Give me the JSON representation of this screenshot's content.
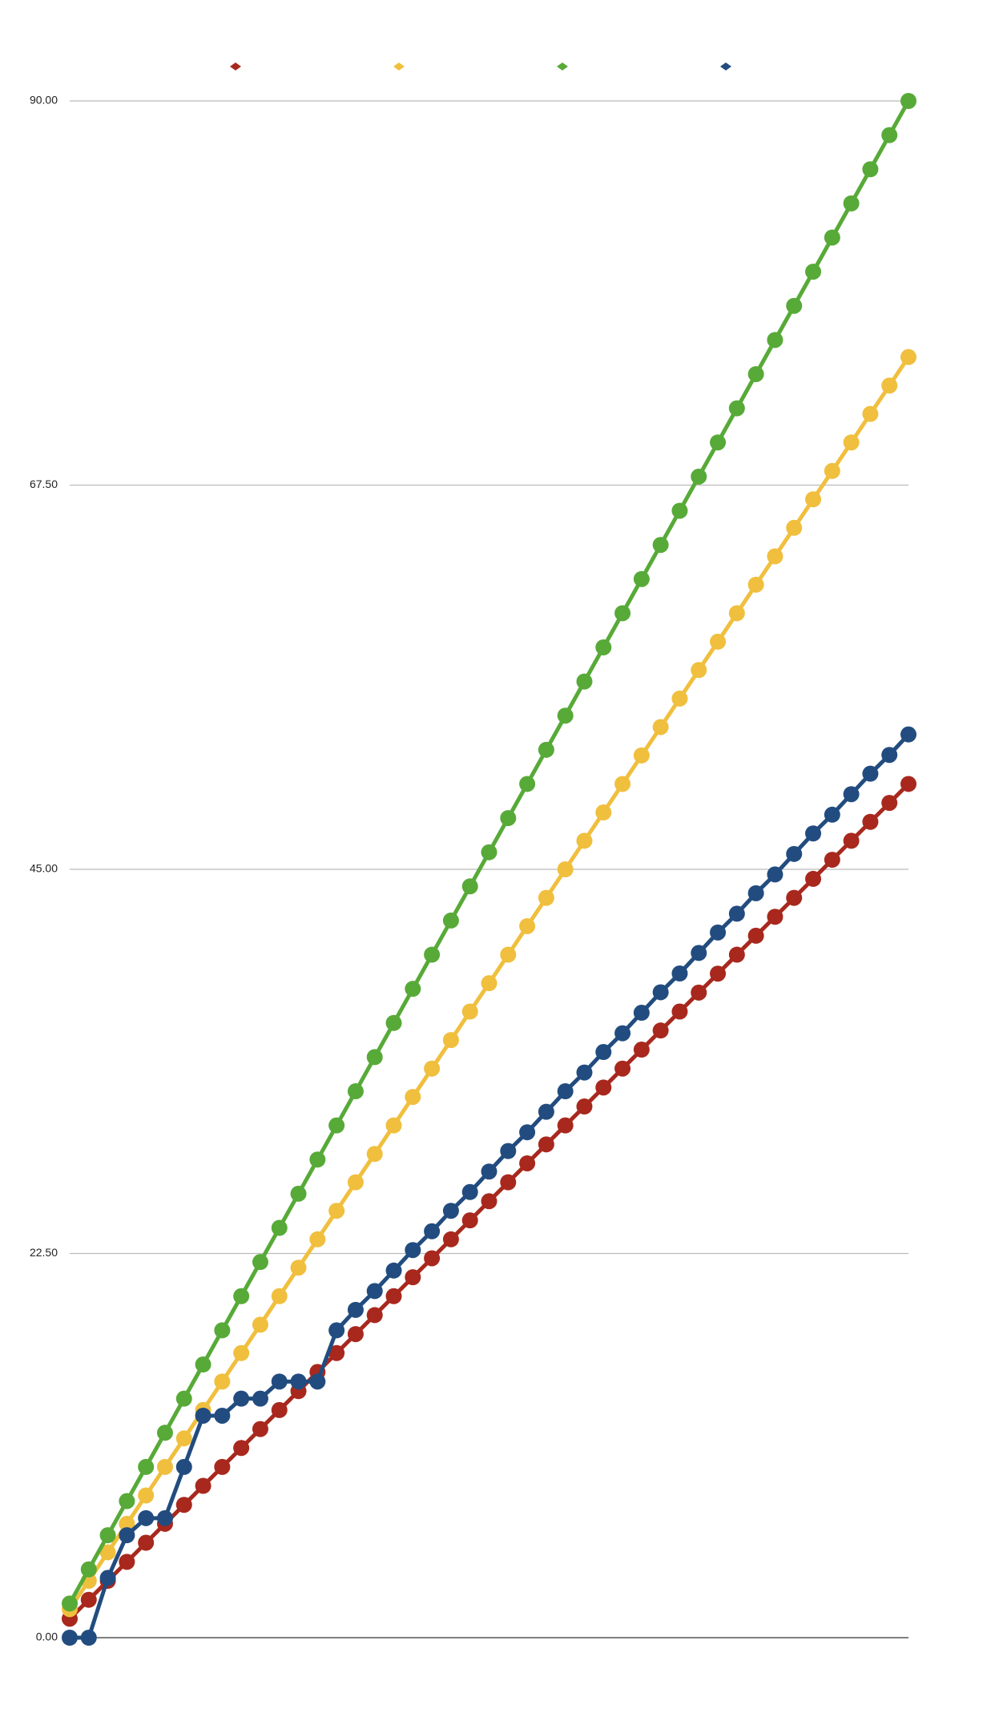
{
  "chart_data": {
    "type": "line",
    "ylim": [
      0,
      90
    ],
    "yticks": [
      {
        "value": 0,
        "label": "0.00"
      },
      {
        "value": 22.5,
        "label": "22.50"
      },
      {
        "value": 45,
        "label": "45.00"
      },
      {
        "value": 67.5,
        "label": "67.50"
      },
      {
        "value": 90,
        "label": "90.00"
      }
    ],
    "grid": true,
    "legend": "top",
    "series": [
      {
        "color": "#a8281d",
        "values": [
          1.11,
          2.22,
          3.33,
          4.44,
          5.56,
          6.67,
          7.78,
          8.89,
          10,
          11.11,
          12.22,
          13.33,
          14.44,
          15.56,
          16.67,
          17.78,
          18.89,
          20,
          21.11,
          22.22,
          23.33,
          24.44,
          25.56,
          26.67,
          27.78,
          28.89,
          30,
          31.11,
          32.22,
          33.33,
          34.44,
          35.56,
          36.67,
          37.78,
          38.89,
          40,
          41.11,
          42.22,
          43.33,
          44.44,
          45.56,
          46.67,
          47.78,
          48.89,
          50
        ]
      },
      {
        "color": "#f0bf3e",
        "values": [
          1.67,
          3.33,
          5,
          6.67,
          8.33,
          10,
          11.67,
          13.33,
          15,
          16.67,
          18.33,
          20,
          21.67,
          23.33,
          25,
          26.67,
          28.33,
          30,
          31.67,
          33.33,
          35,
          36.67,
          38.33,
          40,
          41.67,
          43.33,
          45,
          46.67,
          48.33,
          50,
          51.67,
          53.33,
          55,
          56.67,
          58.33,
          60,
          61.67,
          63.33,
          65,
          66.67,
          68.33,
          70,
          71.67,
          73.33,
          75
        ]
      },
      {
        "color": "#57aa38",
        "values": [
          2,
          4,
          6,
          8,
          10,
          12,
          14,
          16,
          18,
          20,
          22,
          24,
          26,
          28,
          30,
          32,
          34,
          36,
          38,
          40,
          42,
          44,
          46,
          48,
          50,
          52,
          54,
          56,
          58,
          60,
          62,
          64,
          66,
          68,
          70,
          72,
          74,
          76,
          78,
          80,
          82,
          84,
          86,
          88,
          90
        ]
      },
      {
        "color": "#224c7f",
        "values": [
          0,
          0,
          3.5,
          6,
          7,
          7,
          10,
          13,
          13,
          14,
          14,
          15,
          15,
          15,
          18,
          19.2,
          20.3,
          21.5,
          22.7,
          23.8,
          25,
          26.1,
          27.3,
          28.5,
          29.6,
          30.8,
          32,
          33.1,
          34.3,
          35.4,
          36.6,
          37.8,
          38.9,
          40.1,
          41.3,
          42.4,
          43.6,
          44.7,
          45.9,
          47.1,
          48.2,
          49.4,
          50.6,
          51.7,
          52.9
        ]
      }
    ]
  }
}
